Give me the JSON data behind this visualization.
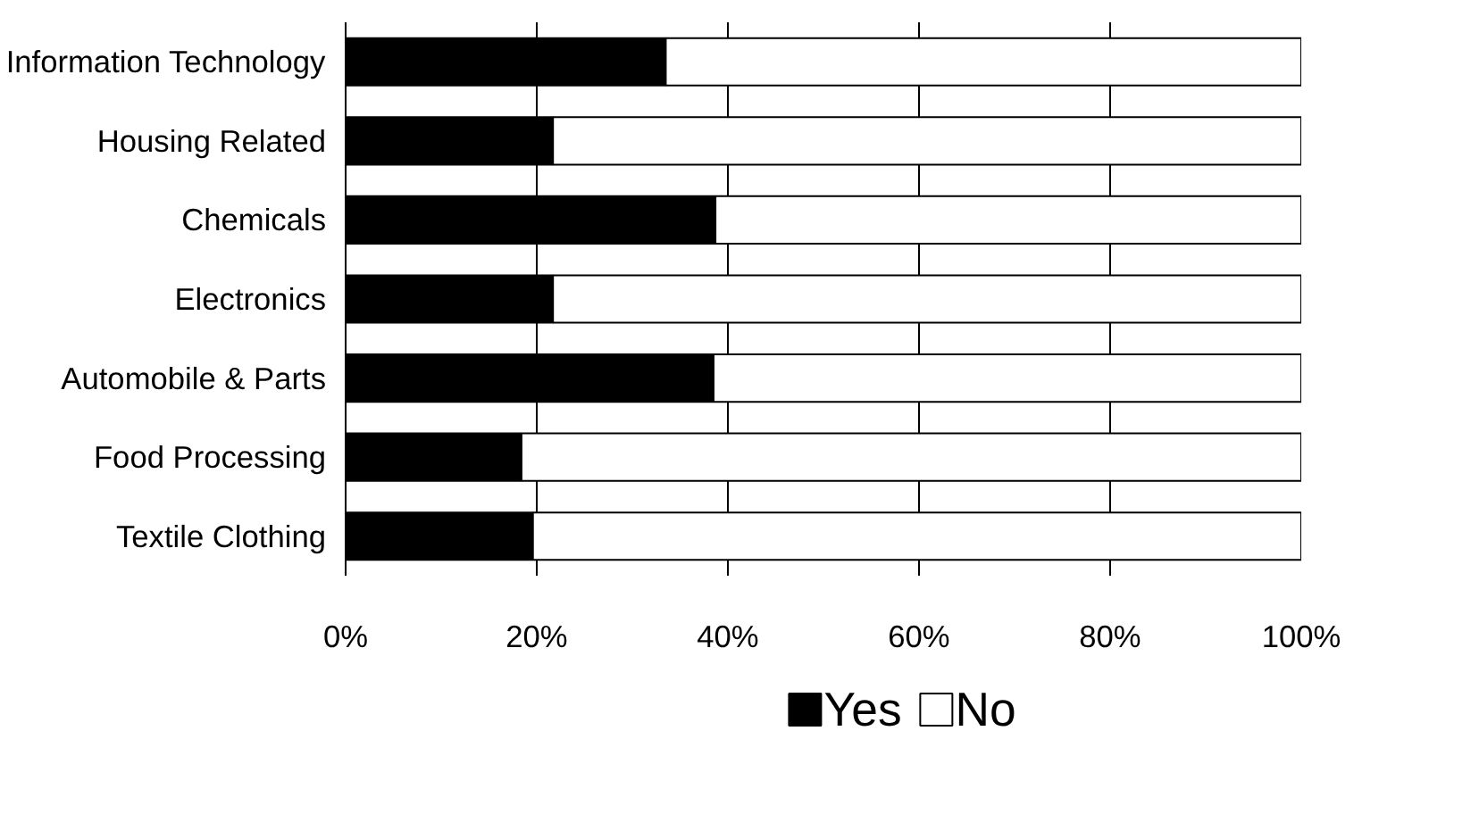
{
  "chart_data": {
    "type": "bar",
    "orientation": "horizontal",
    "stacked": true,
    "categories": [
      "Information Technology",
      "Housing Related",
      "Chemicals",
      "Electronics",
      "Automobile & Parts",
      "Food Processing",
      "Textile Clothing"
    ],
    "series": [
      {
        "name": "Yes",
        "color": "#000000",
        "values": [
          33.5,
          21.7,
          38.7,
          21.7,
          38.5,
          18.4,
          19.6
        ]
      },
      {
        "name": "No",
        "color": "#ffffff",
        "values": [
          66.5,
          78.3,
          61.3,
          78.3,
          61.5,
          81.6,
          80.4
        ]
      }
    ],
    "xlim": [
      0,
      100
    ],
    "xticks": [
      {
        "value": 0,
        "label": "0%"
      },
      {
        "value": 20,
        "label": "20%"
      },
      {
        "value": 40,
        "label": "40%"
      },
      {
        "value": 60,
        "label": "60%"
      },
      {
        "value": 80,
        "label": "80%"
      },
      {
        "value": 100,
        "label": "100%"
      }
    ],
    "grid": "x",
    "legend": "bottom"
  }
}
